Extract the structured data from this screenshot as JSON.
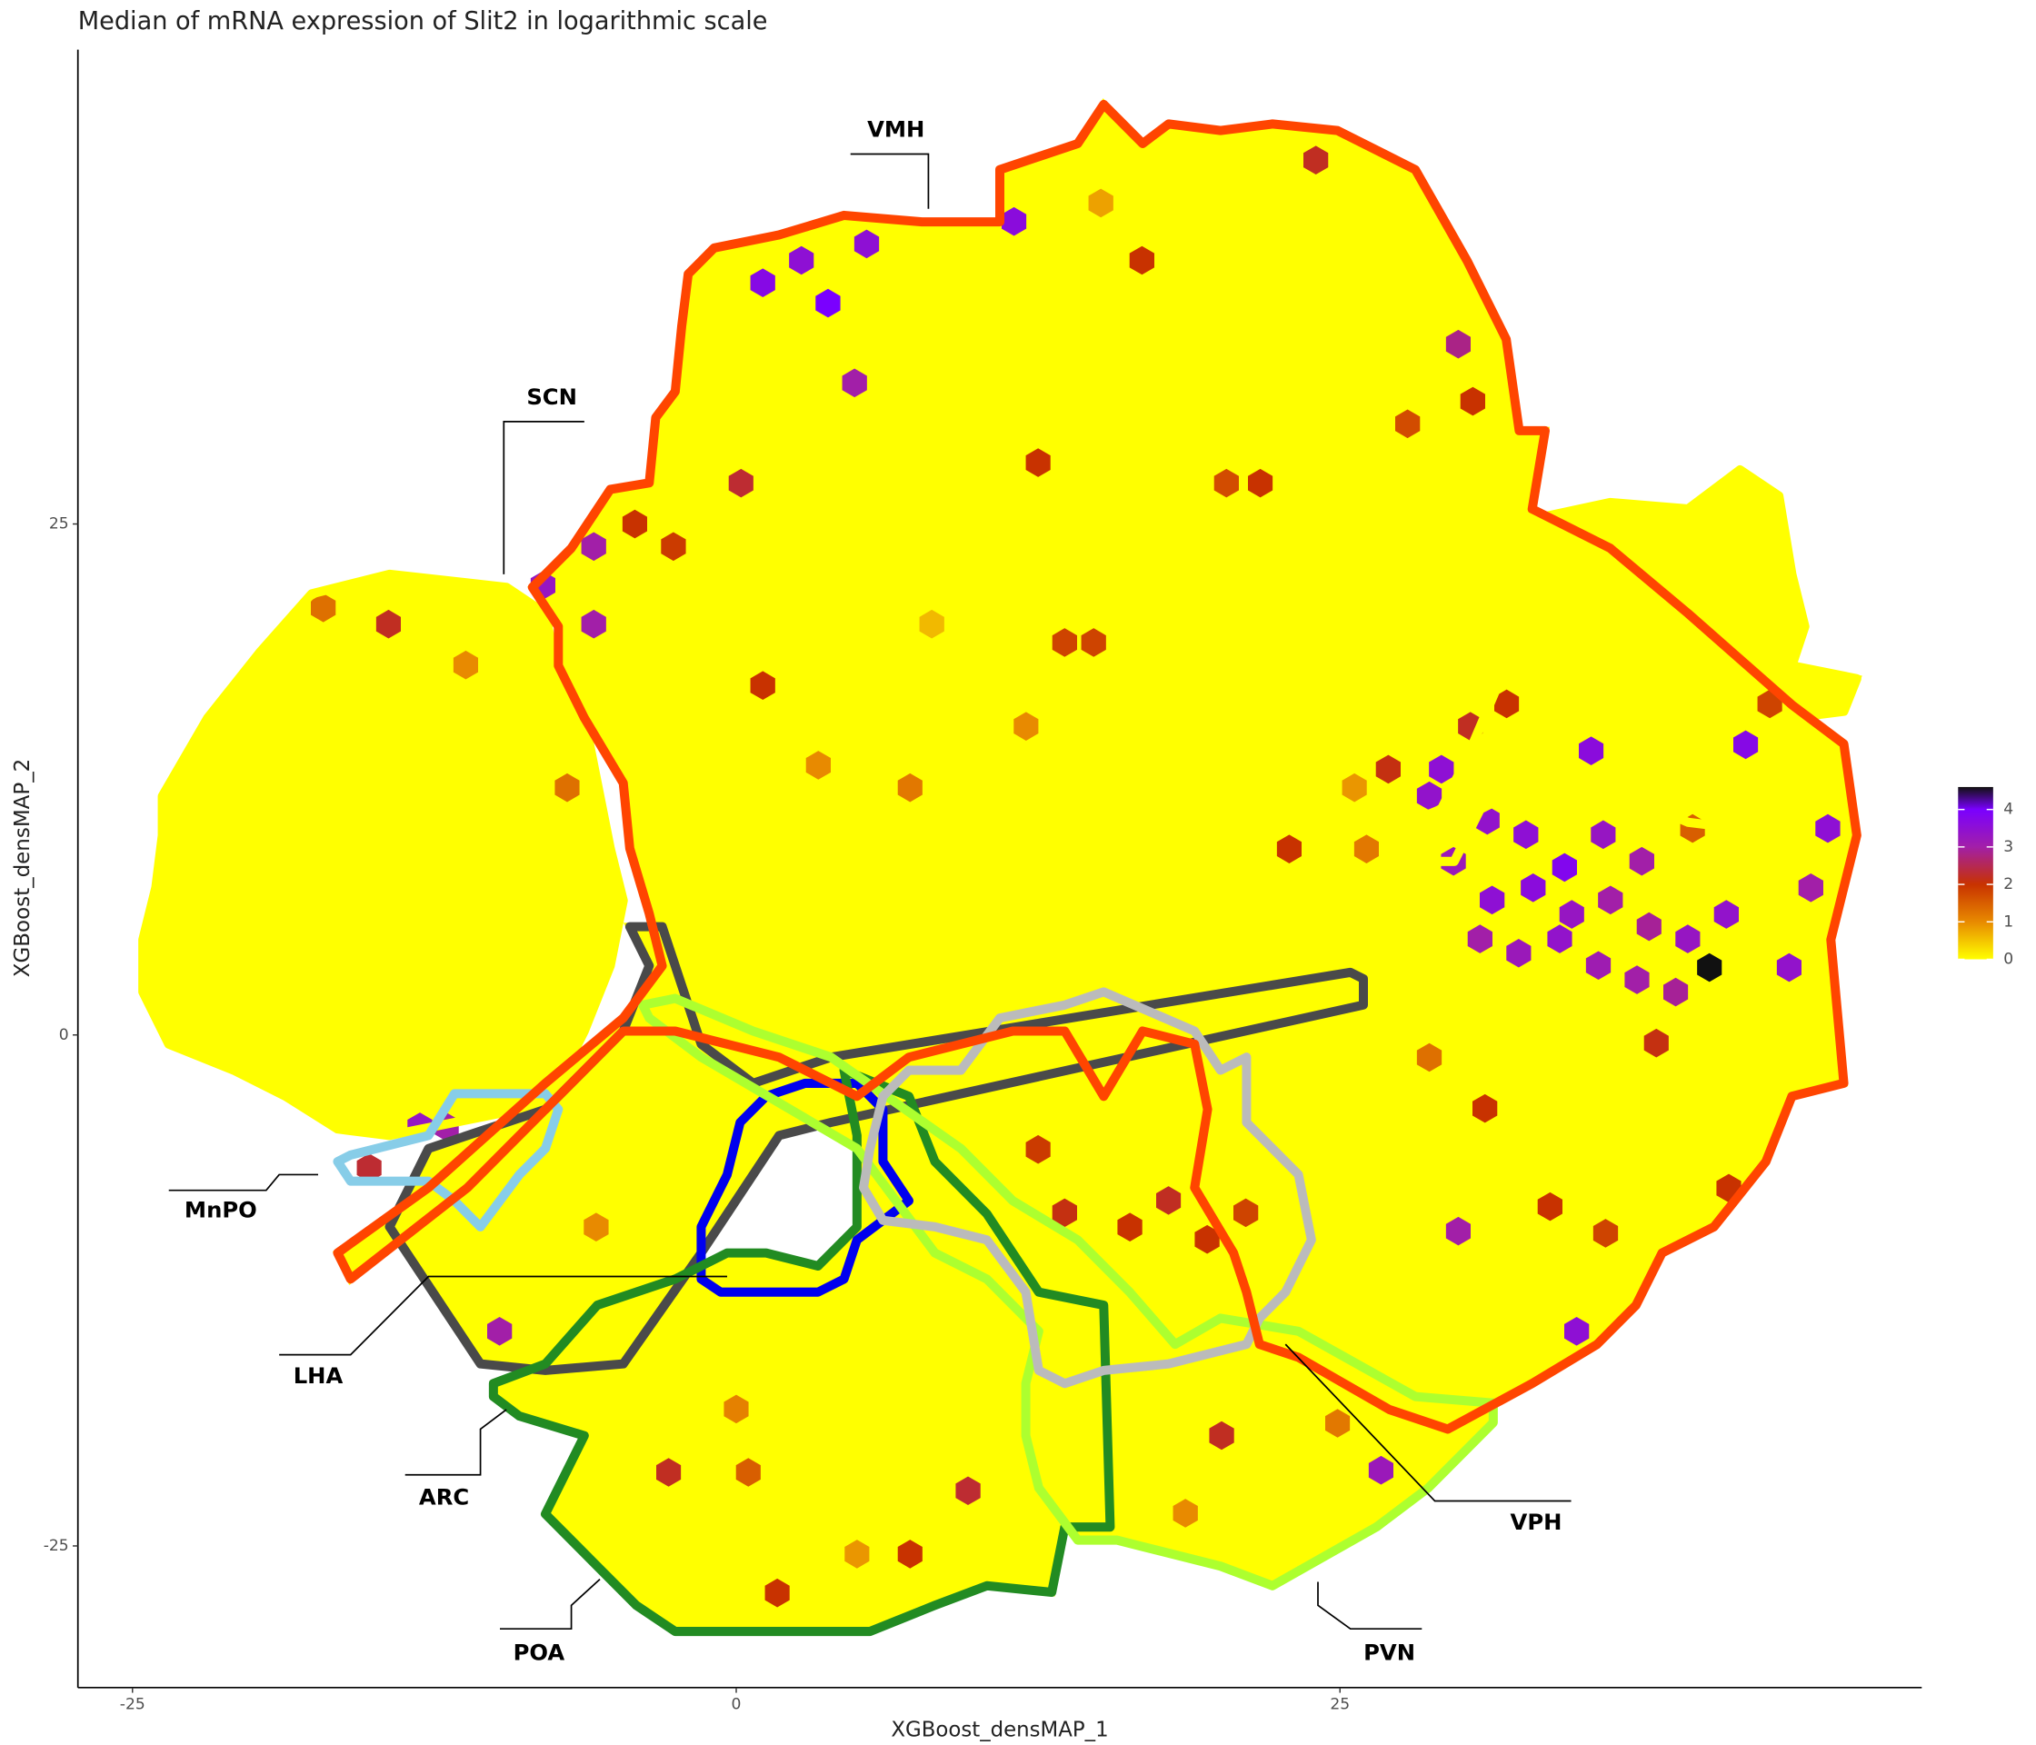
{
  "chart_data": {
    "type": "hexbin",
    "title": "Median of mRNA expression of Slit2 in logarithmic scale",
    "x_label": "XGBoost_densMAP_1",
    "y_label": "XGBoost_densMAP_2",
    "xlim": [
      -27.26,
      49.09
    ],
    "ylim": [
      -31.93,
      48.21
    ],
    "xticks": [
      -25,
      0,
      25
    ],
    "yticks": [
      -25,
      0,
      25
    ],
    "hexbins": {
      "x": [
        40.3,
        34.3,
        32.7,
        31.1,
        35.9,
        37.5,
        29.7,
        31.3,
        33.0,
        34.6,
        36.2,
        37.8,
        39.4,
        41.0,
        30.8,
        32.4,
        34.1,
        35.7,
        37.3,
        38.9,
        29.2,
        28.7,
        35.4,
        41.8,
        45.2,
        43.6,
        34.8,
        26.7,
        29.9,
        11.5,
        1.1,
        5.4,
        3.8,
        4.9,
        2.7,
        -5.9,
        -8.0,
        -5.9,
        29.9,
        -13.1,
        -12.0,
        -9.8,
        44.5,
        24.0,
        16.8,
        12.5,
        0.2,
        -4.2,
        -2.6,
        1.1,
        3.4,
        7.2,
        12.0,
        -7.0,
        22.9,
        26.1,
        13.6,
        14.8,
        21.7,
        20.3,
        30.5,
        27.8,
        16.3,
        17.9,
        19.5,
        21.1,
        13.6,
        12.5,
        20.1,
        9.6,
        -2.8,
        7.2,
        1.7,
        -15.2,
        33.7,
        38.1,
        31.0,
        36.0,
        -5.8,
        0.5,
        0.0,
        -11.2,
        -17.1,
        -14.4,
        8.1,
        15.1,
        28.7,
        24.9,
        18.6,
        5.0,
        41.1,
        42.8,
        39.6,
        31.9,
        27.0,
        25.6,
        30.4
      ],
      "y": [
        3.3,
        8.2,
        9.8,
        10.5,
        9.8,
        8.5,
        8.5,
        6.6,
        7.2,
        5.9,
        6.6,
        5.3,
        4.7,
        5.9,
        4.7,
        4.0,
        4.7,
        3.4,
        2.7,
        2.1,
        13.0,
        11.7,
        13.9,
        14.2,
        10.1,
        3.3,
        -14.5,
        -21.3,
        -9.6,
        39.8,
        36.8,
        38.7,
        35.8,
        31.9,
        37.9,
        23.9,
        22.0,
        20.1,
        33.8,
        -4.5,
        -4.5,
        -14.5,
        7.2,
        42.8,
        37.9,
        28.0,
        27.0,
        25.0,
        23.9,
        17.1,
        13.2,
        12.1,
        15.1,
        12.1,
        9.1,
        9.1,
        19.2,
        19.2,
        27.0,
        27.0,
        31.0,
        29.9,
        -9.4,
        -8.1,
        -10.0,
        -8.7,
        -8.7,
        -5.6,
        -19.6,
        -22.3,
        -21.4,
        -25.4,
        -27.3,
        -6.5,
        -8.4,
        -0.4,
        -3.6,
        -9.7,
        -9.4,
        -21.4,
        -18.3,
        18.1,
        20.9,
        20.1,
        20.1,
        40.7,
        -1.1,
        -19.0,
        -23.4,
        -25.4,
        -7.5,
        16.2,
        10.1,
        16.2,
        13.0,
        12.1,
        15.1
      ],
      "values": [
        4.6,
        3.8,
        3.5,
        3.4,
        3.3,
        3.0,
        3.2,
        3.5,
        3.6,
        3.3,
        3.0,
        2.9,
        3.3,
        3.4,
        3.0,
        3.2,
        3.4,
        3.1,
        3.0,
        2.9,
        3.5,
        3.4,
        3.6,
        3.7,
        3.5,
        3.4,
        3.5,
        3.2,
        3.0,
        3.6,
        3.7,
        3.5,
        4.0,
        3.0,
        3.5,
        3.0,
        3.3,
        3.0,
        2.8,
        3.3,
        3.0,
        3.0,
        3.0,
        2.2,
        2.0,
        2.0,
        2.3,
        2.0,
        1.9,
        2.0,
        1.0,
        1.2,
        1.0,
        1.3,
        2.0,
        1.2,
        1.8,
        1.8,
        2.0,
        1.7,
        2.0,
        1.7,
        2.0,
        2.2,
        2.0,
        1.8,
        2.1,
        1.9,
        2.2,
        2.3,
        2.2,
        2.0,
        2.0,
        2.3,
        2.0,
        2.1,
        2.0,
        1.8,
        1.0,
        1.5,
        1.1,
        1.0,
        1.3,
        2.2,
        0.6,
        0.8,
        1.3,
        1.2,
        1.0,
        0.9,
        2.0,
        1.8,
        1.5,
        2.0,
        2.1,
        0.9,
        2.2
      ]
    },
    "colorbar": {
      "lim": [
        0,
        4.6
      ],
      "ticks": [
        0,
        1,
        2,
        3,
        4
      ],
      "stops": [
        {
          "value": 0,
          "color": "#ffff00"
        },
        {
          "value": 1,
          "color": "#e88a00"
        },
        {
          "value": 2,
          "color": "#c83200"
        },
        {
          "value": 3,
          "color": "#a21fa8"
        },
        {
          "value": 4,
          "color": "#7a00ff"
        },
        {
          "value": 4.6,
          "color": "#111111"
        }
      ]
    },
    "regions": [
      "VMH",
      "SCN",
      "MnPO",
      "LHA",
      "ARC",
      "POA",
      "VPH",
      "PVN"
    ]
  }
}
